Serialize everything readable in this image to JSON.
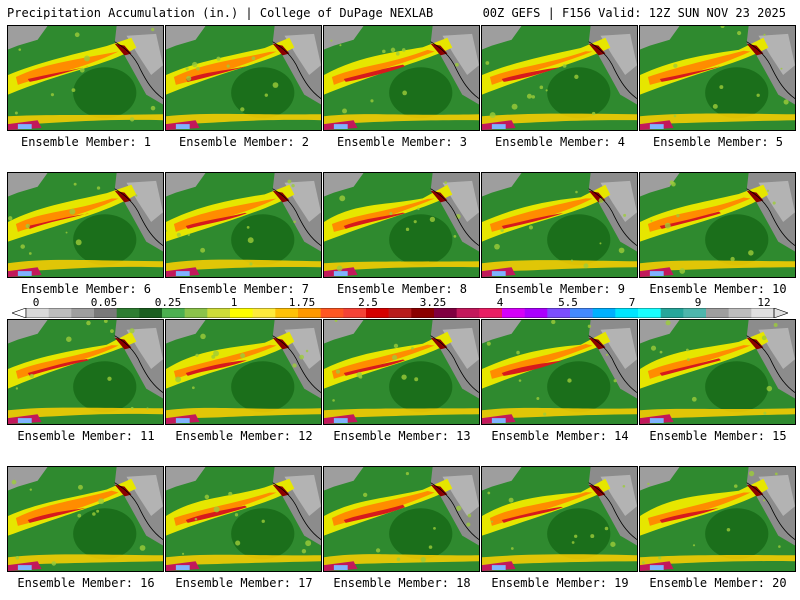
{
  "header": {
    "left": "Precipitation Accumulation (in.) | College of DuPage NEXLAB",
    "right": "00Z GEFS | F156 Valid: 12Z SUN NOV 23 2025"
  },
  "members": [
    "Ensemble Member: 1",
    "Ensemble Member: 2",
    "Ensemble Member: 3",
    "Ensemble Member: 4",
    "Ensemble Member: 5",
    "Ensemble Member: 6",
    "Ensemble Member: 7",
    "Ensemble Member: 8",
    "Ensemble Member: 9",
    "Ensemble Member: 10",
    "Ensemble Member: 11",
    "Ensemble Member: 12",
    "Ensemble Member: 13",
    "Ensemble Member: 14",
    "Ensemble Member: 15",
    "Ensemble Member: 16",
    "Ensemble Member: 17",
    "Ensemble Member: 18",
    "Ensemble Member: 19",
    "Ensemble Member: 20"
  ],
  "colorbar": {
    "tick_labels": [
      "0",
      "0.05",
      "0.25",
      "1",
      "1.75",
      "2.5",
      "3.25",
      "4",
      "5.5",
      "7",
      "9",
      "12"
    ],
    "colors": [
      "#d9d9d9",
      "#bdbdbd",
      "#9e9e9e",
      "#7a7a7a",
      "#2e7d32",
      "#1b5e20",
      "#4caf50",
      "#8bc34a",
      "#cddc39",
      "#ffff00",
      "#ffeb3b",
      "#ffc107",
      "#ff9800",
      "#ff5722",
      "#f44336",
      "#d50000",
      "#b71c1c",
      "#8b0000",
      "#800040",
      "#c2185b",
      "#e91e63",
      "#d500f9",
      "#aa00ff",
      "#7c4dff",
      "#448aff",
      "#00b0ff",
      "#00e5ff",
      "#18ffff",
      "#26a69a",
      "#4db6ac",
      "#9e9e9e",
      "#bdbdbd",
      "#e0e0e0"
    ]
  }
}
